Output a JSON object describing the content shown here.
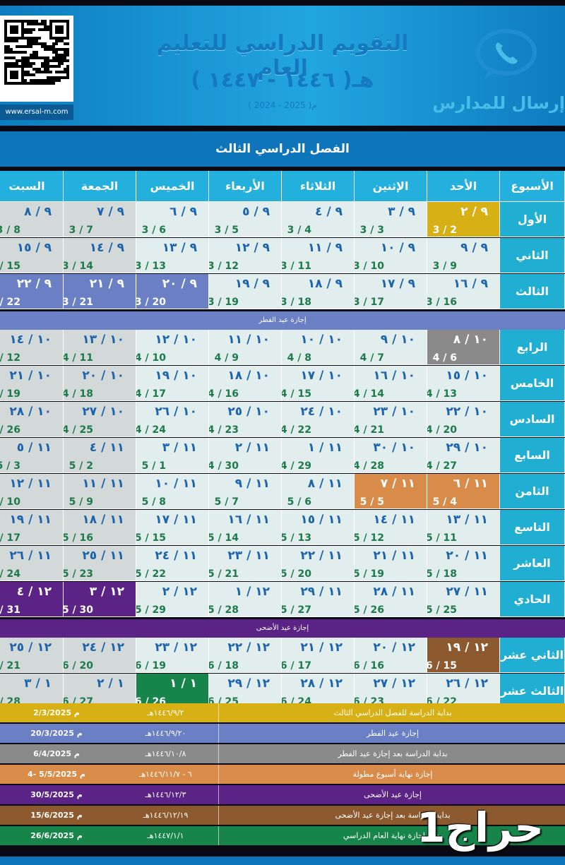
{
  "header": {
    "title": "التقويم الدراسي للتعليم العام",
    "hijri_years": "( ١٤٤٦ - ١٤٤٧ )هـ",
    "greg_years": "( 2024 - 2025 )م",
    "website": "www.ersal-m.com",
    "logo_text": "إرسال للمدارس",
    "logo_icon": "phone-chat-icon",
    "qr_icon": "qr-code-icon"
  },
  "section_title": "الفصل الدراسي الثالث",
  "columns": [
    "الأسبوع",
    "الأحد",
    "الإثنين",
    "الثلاثاء",
    "الأربعاء",
    "الخميس",
    "الجمعة",
    "السبت"
  ],
  "weeks": [
    {
      "name": "الأول",
      "days": [
        {
          "h": "٩ / ٢",
          "g": "3 / 2",
          "hl": "#d6b014"
        },
        {
          "h": "٩ / ٣",
          "g": "3 / 3"
        },
        {
          "h": "٩ / ٤",
          "g": "3 / 4"
        },
        {
          "h": "٩ / ٥",
          "g": "3 / 5"
        },
        {
          "h": "٩ / ٦",
          "g": "3 / 6"
        },
        {
          "h": "٩ / ٧",
          "g": "3 / 7"
        },
        {
          "h": "٩ / ٨",
          "g": "3 / 8"
        }
      ]
    },
    {
      "name": "الثاني",
      "days": [
        {
          "h": "٩ / ٩",
          "g": "3 / 9"
        },
        {
          "h": "٩ / ١٠",
          "g": "3 / 10"
        },
        {
          "h": "٩ / ١١",
          "g": "3 / 11"
        },
        {
          "h": "٩ / ١٢",
          "g": "3 / 12"
        },
        {
          "h": "٩ / ١٣",
          "g": "3 / 13"
        },
        {
          "h": "٩ / ١٤",
          "g": "3 / 14"
        },
        {
          "h": "٩ / ١٥",
          "g": "3 / 15"
        }
      ]
    },
    {
      "name": "الثالث",
      "days": [
        {
          "h": "٩ / ١٦",
          "g": "3 / 16"
        },
        {
          "h": "٩ / ١٧",
          "g": "3 / 17"
        },
        {
          "h": "٩ / ١٨",
          "g": "3 / 18"
        },
        {
          "h": "٩ / ١٩",
          "g": "3 / 19"
        },
        {
          "h": "٩ / ٢٠",
          "g": "3 / 20",
          "hl": "#6a7fc4"
        },
        {
          "h": "٩ / ٢١",
          "g": "3 / 21",
          "hl": "#6a7fc4"
        },
        {
          "h": "٩ / ٢٢",
          "g": "3 / 22",
          "hl": "#6a7fc4"
        }
      ]
    },
    {
      "holiday": "إجازة عيد الفطر",
      "color": "#6a7fc4"
    },
    {
      "name": "الرابع",
      "days": [
        {
          "h": "١٠ / ٨",
          "g": "4 / 6",
          "hl": "#8a8a8a"
        },
        {
          "h": "١٠ / ٩",
          "g": "4 / 7"
        },
        {
          "h": "١٠ / ١٠",
          "g": "4 / 8"
        },
        {
          "h": "١٠ / ١١",
          "g": "4 / 9"
        },
        {
          "h": "١٠ / ١٢",
          "g": "4 / 10"
        },
        {
          "h": "١٠ / ١٣",
          "g": "4 / 11"
        },
        {
          "h": "١٠ / ١٤",
          "g": "4 / 12"
        }
      ]
    },
    {
      "name": "الخامس",
      "days": [
        {
          "h": "١٠ / ١٥",
          "g": "4 / 13"
        },
        {
          "h": "١٠ / ١٦",
          "g": "4 / 14"
        },
        {
          "h": "١٠ / ١٧",
          "g": "4 / 15"
        },
        {
          "h": "١٠ / ١٨",
          "g": "4 / 16"
        },
        {
          "h": "١٠ / ١٩",
          "g": "4 / 17"
        },
        {
          "h": "١٠ / ٢٠",
          "g": "4 / 18"
        },
        {
          "h": "١٠ / ٢١",
          "g": "4 / 19"
        }
      ]
    },
    {
      "name": "السادس",
      "days": [
        {
          "h": "١٠ / ٢٢",
          "g": "4 / 20"
        },
        {
          "h": "١٠ / ٢٣",
          "g": "4 / 21"
        },
        {
          "h": "١٠ / ٢٤",
          "g": "4 / 22"
        },
        {
          "h": "١٠ / ٢٥",
          "g": "4 / 23"
        },
        {
          "h": "١٠ / ٢٦",
          "g": "4 / 24"
        },
        {
          "h": "١٠ / ٢٧",
          "g": "4 / 25"
        },
        {
          "h": "١٠ / ٢٨",
          "g": "4 / 26"
        }
      ]
    },
    {
      "name": "السابع",
      "days": [
        {
          "h": "١٠ / ٢٩",
          "g": "4 / 27"
        },
        {
          "h": "١٠ / ٣٠",
          "g": "4 / 28"
        },
        {
          "h": "١١ / ١",
          "g": "4 / 29"
        },
        {
          "h": "١١ / ٢",
          "g": "4 / 30"
        },
        {
          "h": "١١ / ٣",
          "g": "5 / 1"
        },
        {
          "h": "١١ / ٤",
          "g": "5 / 2"
        },
        {
          "h": "١١ / ٥",
          "g": "5 / 3"
        }
      ]
    },
    {
      "name": "الثامن",
      "days": [
        {
          "h": "١١ / ٦",
          "g": "5 / 4",
          "hl": "#d98c4a"
        },
        {
          "h": "١١ / ٧",
          "g": "5 / 5",
          "hl": "#d98c4a"
        },
        {
          "h": "١١ / ٨",
          "g": "5 / 6"
        },
        {
          "h": "١١ / ٩",
          "g": "5 / 7"
        },
        {
          "h": "١١ / ١٠",
          "g": "5 / 8"
        },
        {
          "h": "١١ / ١١",
          "g": "5 / 9"
        },
        {
          "h": "١١ / ١٢",
          "g": "5 / 10"
        }
      ]
    },
    {
      "name": "التاسع",
      "days": [
        {
          "h": "١١ / ١٣",
          "g": "5 / 11"
        },
        {
          "h": "١١ / ١٤",
          "g": "5 / 12"
        },
        {
          "h": "١١ / ١٥",
          "g": "5 / 13"
        },
        {
          "h": "١١ / ١٦",
          "g": "5 / 14"
        },
        {
          "h": "١١ / ١٧",
          "g": "5 / 15"
        },
        {
          "h": "١١ / ١٨",
          "g": "5 / 16"
        },
        {
          "h": "١١ / ١٩",
          "g": "5 / 17"
        }
      ]
    },
    {
      "name": "العاشر",
      "days": [
        {
          "h": "١١ / ٢٠",
          "g": "5 / 18"
        },
        {
          "h": "١١ / ٢١",
          "g": "5 / 19"
        },
        {
          "h": "١١ / ٢٢",
          "g": "5 / 20"
        },
        {
          "h": "١١ / ٢٣",
          "g": "5 / 21"
        },
        {
          "h": "١١ / ٢٤",
          "g": "5 / 22"
        },
        {
          "h": "١١ / ٢٥",
          "g": "5 / 23"
        },
        {
          "h": "١١ / ٢٦",
          "g": "5 / 24"
        }
      ]
    },
    {
      "name": "الحادي عشر",
      "days": [
        {
          "h": "١١ / ٢٧",
          "g": "5 / 25"
        },
        {
          "h": "١١ / ٢٨",
          "g": "5 / 26"
        },
        {
          "h": "١١ / ٢٩",
          "g": "5 / 27"
        },
        {
          "h": "١٢ / ١",
          "g": "5 / 28"
        },
        {
          "h": "١٢ / ٢",
          "g": "5 / 29"
        },
        {
          "h": "١٢ / ٣",
          "g": "5 / 30",
          "hl": "#5b2385"
        },
        {
          "h": "١٢ / ٤",
          "g": "5 / 31",
          "hl": "#5b2385"
        }
      ]
    },
    {
      "holiday": "إجازة عيد الأضحى",
      "color": "#5b2385"
    },
    {
      "name": "الثاني عشر",
      "days": [
        {
          "h": "١٢ / ١٩",
          "g": "6 / 15",
          "hl": "#8c5a2e"
        },
        {
          "h": "١٢ / ٢٠",
          "g": "6 / 16"
        },
        {
          "h": "١٢ / ٢١",
          "g": "6 / 17"
        },
        {
          "h": "١٢ / ٢٢",
          "g": "6 / 18"
        },
        {
          "h": "١٢ / ٢٣",
          "g": "6 / 19"
        },
        {
          "h": "١٢ / ٢٤",
          "g": "6 / 20"
        },
        {
          "h": "١٢ / ٢٥",
          "g": "6 / 21"
        }
      ]
    },
    {
      "name": "الثالث عشر",
      "days": [
        {
          "h": "١٢ / ٢٦",
          "g": "6 / 22"
        },
        {
          "h": "١٢ / ٢٧",
          "g": "6 / 23"
        },
        {
          "h": "١٢ / ٢٨",
          "g": "6 / 24"
        },
        {
          "h": "١٢ / ٢٩",
          "g": "6 / 25"
        },
        {
          "h": "١ / ١",
          "g": "6 / 26",
          "hl": "#17844a"
        },
        {
          "h": "١ / ٢",
          "g": "6 / 27"
        },
        {
          "h": "١ / ٣",
          "g": "6 / 28"
        }
      ]
    }
  ],
  "legend": [
    {
      "greg": "2/3/2025 م",
      "hijri": "١٤٤٦/٩/٢هـ",
      "text": "بداية الدراسة للفصل الدراسي الثالث",
      "color": "#d6b014"
    },
    {
      "greg": "20/3/2025 م",
      "hijri": "١٤٤٦/٩/٢٠هـ",
      "text": "إجازة عيد الفطر",
      "color": "#6a7fc4"
    },
    {
      "greg": "6/4/2025 م",
      "hijri": "١٤٤٦/١٠/٨هـ",
      "text": "بداية الدراسة بعد إجازة عيد الفطر",
      "color": "#8a8a8a"
    },
    {
      "greg": "4- 5/5/2025 م",
      "hijri": "٦ - ١٤٤٦/١١/٧هـ",
      "text": "إجازة نهاية أسبوع مطولة",
      "color": "#d98c4a"
    },
    {
      "greg": "30/5/2025 م",
      "hijri": "١٤٤٦/١٢/٣هـ",
      "text": "إجازة عيد الأضحى",
      "color": "#5b2385"
    },
    {
      "greg": "15/6/2025 م",
      "hijri": "١٤٤٦/١٢/١٩هـ",
      "text": "بداية الدراسة بعد إجازة عيد الأضحى",
      "color": "#8c5a2e"
    },
    {
      "greg": "26/6/2025 م",
      "hijri": "١٤٤٧/١/١هـ",
      "text": "بداية إجازة نهاية العام الدراسي",
      "color": "#17844a"
    }
  ],
  "watermark": "حراج1"
}
